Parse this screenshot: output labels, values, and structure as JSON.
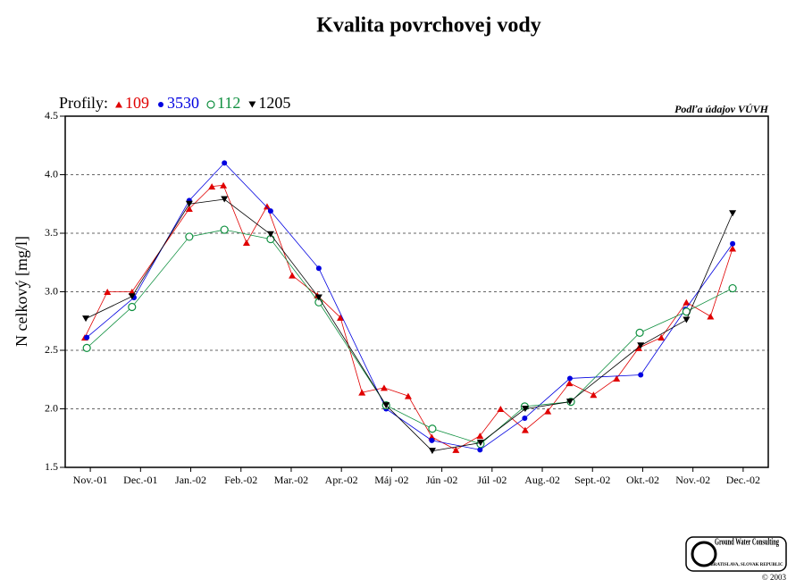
{
  "chart_data": {
    "type": "line",
    "title": "Kvalita povrchovej vody",
    "ylabel": "N celkový [mg/l]",
    "legend_title": "Profily:",
    "note": "Podľa údajov VÚVH",
    "xlim": [
      0,
      14
    ],
    "xticks": [
      {
        "value": 0.5,
        "label": "Nov.-01"
      },
      {
        "value": 1.5,
        "label": "Dec.-01"
      },
      {
        "value": 2.5,
        "label": "Jan.-02"
      },
      {
        "value": 3.5,
        "label": "Feb.-02"
      },
      {
        "value": 4.5,
        "label": "Mar.-02"
      },
      {
        "value": 5.5,
        "label": "Apr.-02"
      },
      {
        "value": 6.5,
        "label": "Máj -02"
      },
      {
        "value": 7.5,
        "label": "Jún -02"
      },
      {
        "value": 8.5,
        "label": "Júl -02"
      },
      {
        "value": 9.5,
        "label": "Aug.-02"
      },
      {
        "value": 10.5,
        "label": "Sept.-02"
      },
      {
        "value": 11.5,
        "label": "Okt.-02"
      },
      {
        "value": 12.5,
        "label": "Nov.-02"
      },
      {
        "value": 13.5,
        "label": "Dec.-02"
      }
    ],
    "ylim": [
      1.5,
      4.5
    ],
    "yticks": [
      1.5,
      {
        "value": 2,
        "label": "2.0"
      },
      2.5,
      {
        "value": 3,
        "label": "3.0"
      },
      3.5,
      {
        "value": 4,
        "label": "4.0"
      },
      4.5
    ],
    "grid": true,
    "series": [
      {
        "name": "109",
        "color": "#e00000",
        "marker": "triangle-up",
        "x": [
          0.39,
          0.84,
          1.33,
          2.47,
          2.92,
          3.15,
          3.61,
          4.02,
          4.52,
          5.02,
          5.48,
          5.91,
          6.35,
          6.83,
          7.3,
          7.78,
          8.26,
          8.67,
          9.16,
          9.61,
          10.04,
          10.52,
          10.98,
          11.42,
          11.87,
          12.37,
          12.85,
          13.29
        ],
        "values": [
          2.61,
          3.0,
          3.0,
          3.71,
          3.9,
          3.91,
          3.42,
          3.73,
          3.14,
          2.97,
          2.78,
          2.14,
          2.18,
          2.11,
          1.76,
          1.65,
          1.77,
          2.0,
          1.82,
          1.98,
          2.22,
          2.12,
          2.26,
          2.52,
          2.61,
          2.91,
          2.79,
          3.37
        ]
      },
      {
        "name": "3530",
        "color": "#0000e0",
        "marker": "circle",
        "x": [
          0.43,
          1.37,
          2.47,
          3.17,
          4.09,
          5.05,
          6.39,
          7.3,
          8.26,
          9.15,
          10.05,
          11.46,
          12.35,
          13.29
        ],
        "values": [
          2.61,
          2.95,
          3.78,
          4.1,
          3.69,
          3.2,
          2.0,
          1.73,
          1.65,
          1.92,
          2.26,
          2.29,
          2.85,
          3.41
        ]
      },
      {
        "name": "112",
        "color": "#109040",
        "marker": "circle-open",
        "x": [
          0.43,
          1.33,
          2.47,
          3.17,
          4.09,
          5.05,
          6.39,
          7.31,
          8.27,
          9.15,
          10.07,
          11.44,
          12.37,
          13.29
        ],
        "values": [
          2.52,
          2.87,
          3.47,
          3.53,
          3.45,
          2.91,
          2.03,
          1.83,
          1.7,
          2.02,
          2.06,
          2.65,
          2.83,
          3.03
        ]
      },
      {
        "name": "1205",
        "color": "#000000",
        "marker": "triangle-down",
        "x": [
          0.41,
          1.33,
          2.47,
          3.17,
          4.09,
          5.05,
          6.39,
          7.31,
          8.27,
          9.16,
          10.05,
          11.46,
          12.37,
          13.29
        ],
        "values": [
          2.77,
          2.96,
          3.75,
          3.79,
          3.49,
          2.95,
          2.03,
          1.64,
          1.71,
          2.0,
          2.06,
          2.54,
          2.76,
          3.67
        ]
      }
    ]
  },
  "logo": {
    "name": "Ground Water Consulting",
    "location": "BRATISLAVA, SLOVAK REPUBLIC",
    "copyright": "© 2003"
  }
}
